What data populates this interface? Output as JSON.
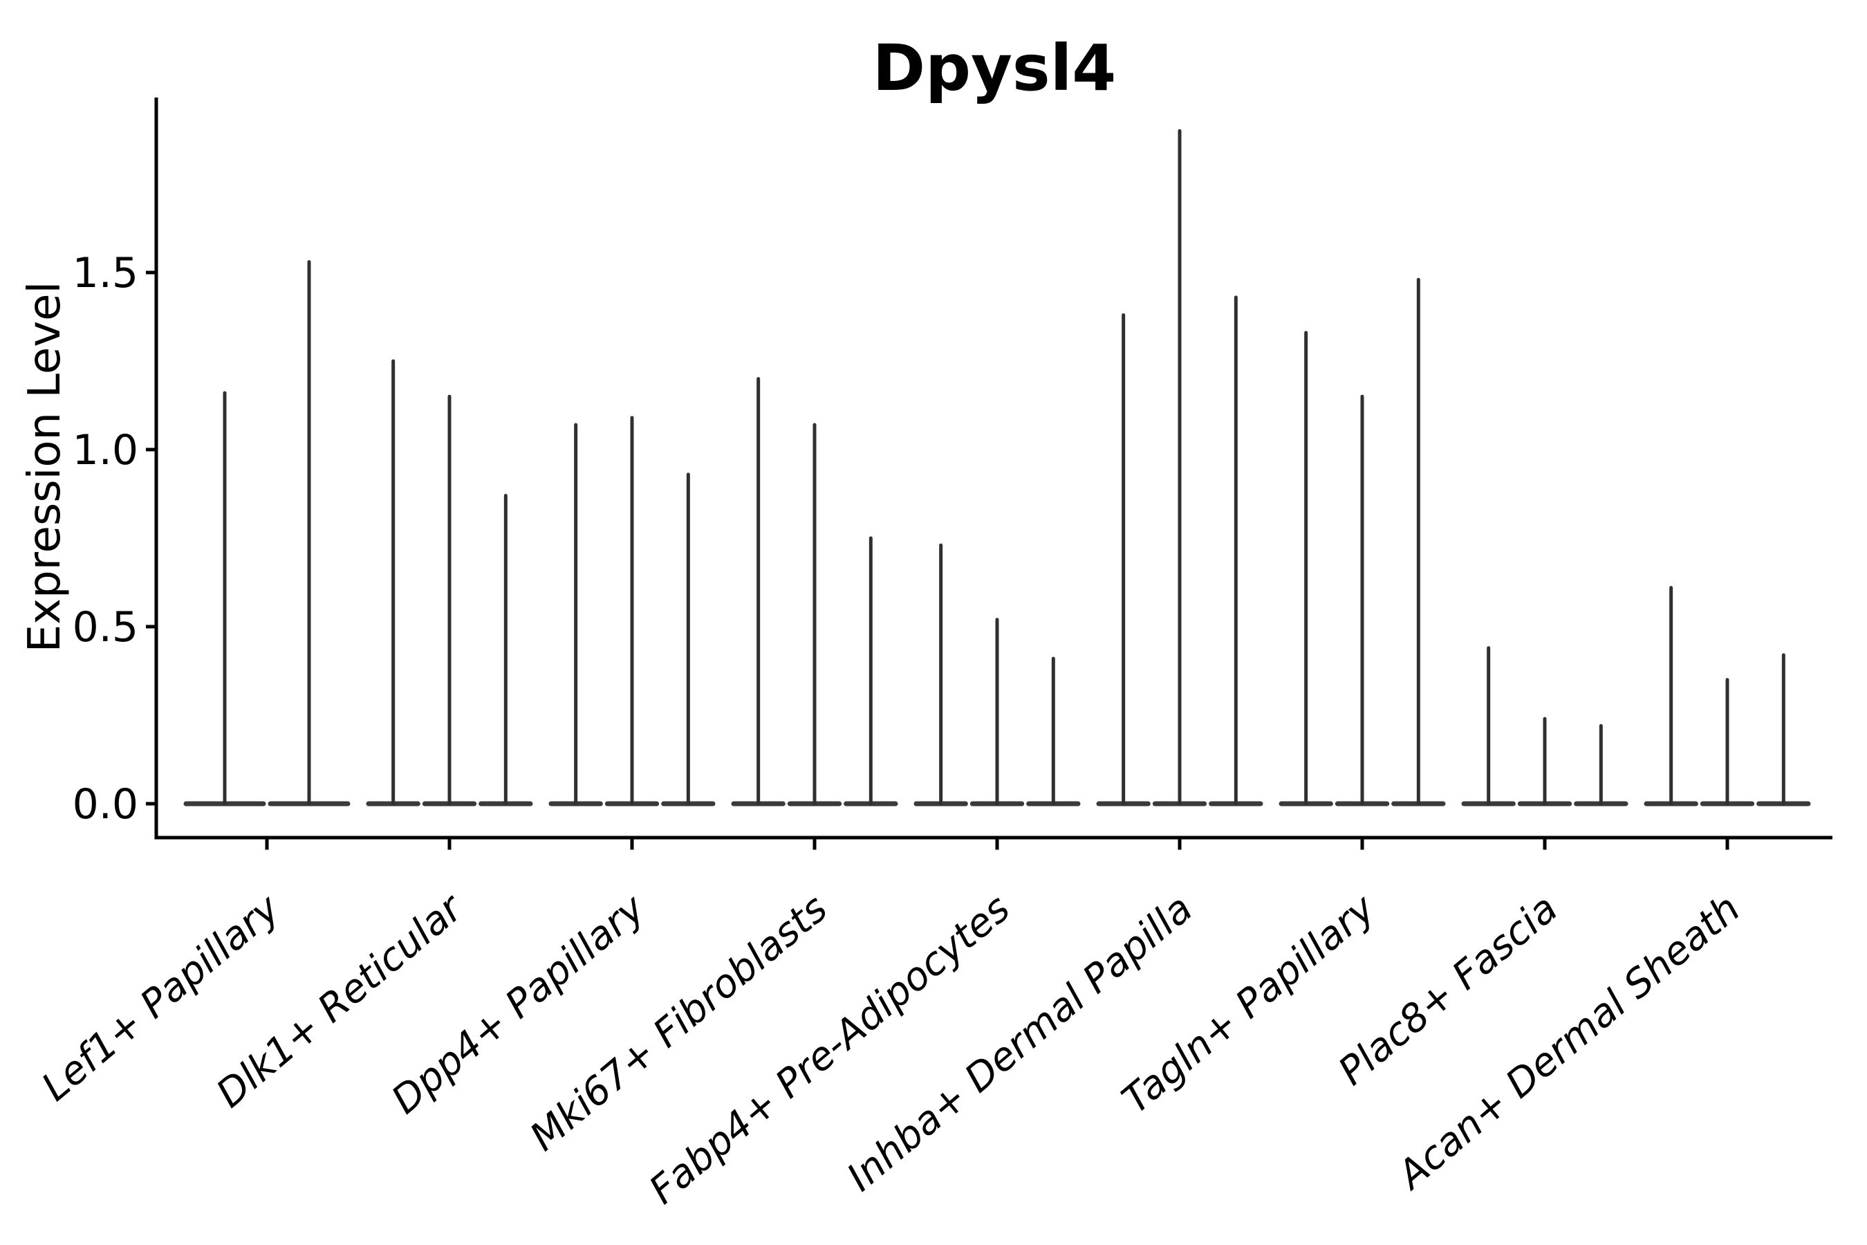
{
  "figure": {
    "background": "#ffffff"
  },
  "chart_data": {
    "type": "violin",
    "title": "Dpysl4",
    "xlabel": "",
    "ylabel": "Expression Level",
    "ylim": [
      -0.1,
      2.0
    ],
    "yticks": [
      0.0,
      0.5,
      1.0,
      1.5
    ],
    "ytick_labels": [
      "0.0",
      "0.5",
      "1.0",
      "1.5"
    ],
    "grid": false,
    "legend_position": "none",
    "x_label_rotation_deg": 40,
    "violin_shape_note": "each violin is a wide flat base at expression 0 with a thin spike up to the max value",
    "categories": [
      "Lef1+ Papillary",
      "Dlk1+ Reticular",
      "Dpp4+ Papillary",
      "Mki67+ Fibroblasts",
      "Fabp4+ Pre-Adipocytes",
      "Inhba+ Dermal Papilla",
      "Tagln+ Papillary",
      "Plac8+ Fascia",
      "Acan+ Dermal Sheath"
    ],
    "groups": [
      {
        "label": "Lef1+ Papillary",
        "spike_max_values": [
          1.16,
          1.53
        ]
      },
      {
        "label": "Dlk1+ Reticular",
        "spike_max_values": [
          1.25,
          1.15,
          0.87
        ]
      },
      {
        "label": "Dpp4+ Papillary",
        "spike_max_values": [
          1.07,
          1.09,
          0.93
        ]
      },
      {
        "label": "Mki67+ Fibroblasts",
        "spike_max_values": [
          1.2,
          1.07,
          0.75
        ]
      },
      {
        "label": "Fabp4+ Pre-Adipocytes",
        "spike_max_values": [
          0.73,
          0.52,
          0.41
        ]
      },
      {
        "label": "Inhba+ Dermal Papilla",
        "spike_max_values": [
          1.38,
          1.9,
          1.43
        ]
      },
      {
        "label": "Tagln+ Papillary",
        "spike_max_values": [
          1.33,
          1.15,
          1.48
        ]
      },
      {
        "label": "Plac8+ Fascia",
        "spike_max_values": [
          0.44,
          0.24,
          0.22
        ]
      },
      {
        "label": "Acan+ Dermal Sheath",
        "spike_max_values": [
          0.61,
          0.35,
          0.42
        ]
      }
    ],
    "colors": {
      "violin": "#303030",
      "violin_base": "#3a3a3a",
      "axis": "#000000",
      "text": "#000000"
    }
  }
}
